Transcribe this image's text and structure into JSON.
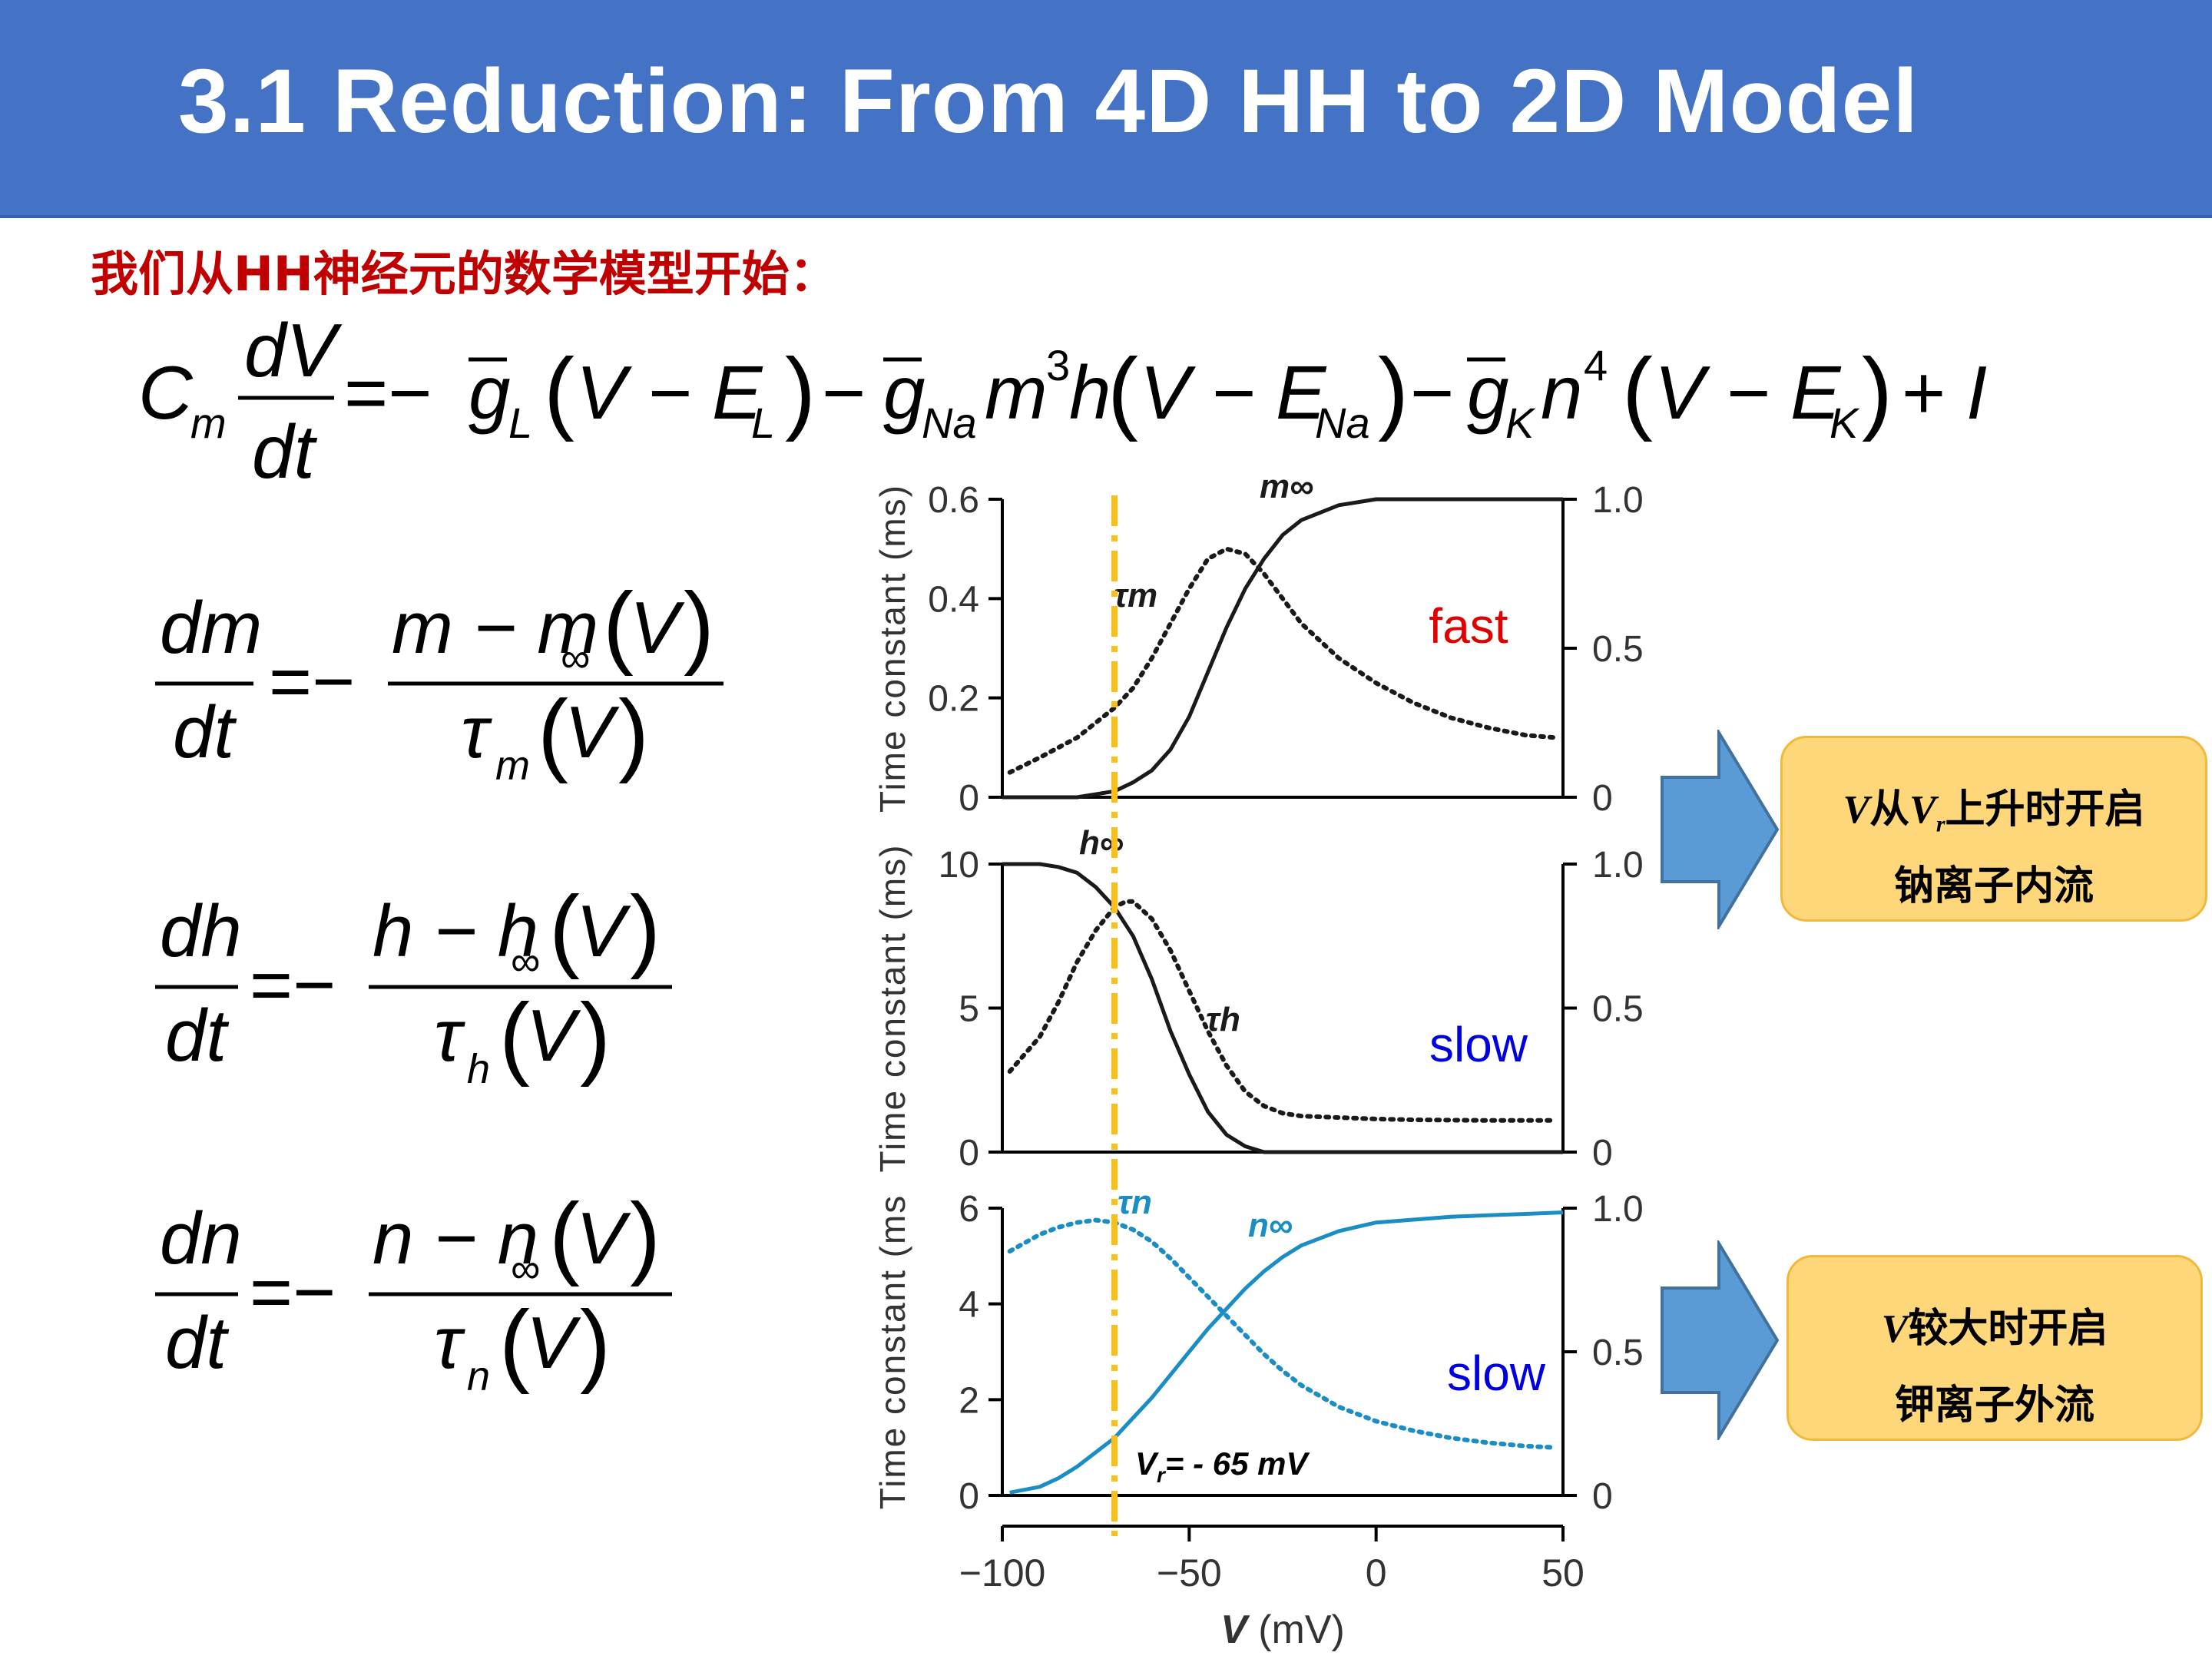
{
  "slide": {
    "title": "3.1 Reduction: From 4D HH to 2D Model",
    "subtitle": "我们从HH神经元的数学模型开始："
  },
  "colors": {
    "title_bg": "#4472c4",
    "subtitle": "#c00000",
    "callout_bg": "#fdd77a",
    "arrow": "#5b9bd5",
    "vr_line": "#fbbf17",
    "n_curve": "#1a8dc4",
    "fast": "#e00000",
    "slow": "#0000dd"
  },
  "callouts": [
    {
      "line1_v": "V",
      "line1_a": "从",
      "line1_vr": "V",
      "line1_sub": "r",
      "line1_b": "上升时开启",
      "line2": "钠离子内流"
    },
    {
      "line1_v": "V",
      "line1_a": "较大时开启",
      "line2": "钾离子外流"
    }
  ],
  "chart_data": [
    {
      "type": "line",
      "ylabel": "Time constant (ms)",
      "yticks_left": [
        "0",
        "0.2",
        "0.4",
        "0.6"
      ],
      "yticks_right": [
        "0",
        "0.5",
        "1.0"
      ],
      "ylim_left": [
        0,
        0.6
      ],
      "ylim_right": [
        0,
        1.0
      ],
      "xlim": [
        -100,
        50
      ],
      "speed_label": "fast",
      "series": [
        {
          "name": "m∞",
          "axis": "right",
          "style": "solid",
          "x": [
            -100,
            -90,
            -80,
            -70,
            -65,
            -60,
            -55,
            -50,
            -45,
            -40,
            -35,
            -30,
            -25,
            -20,
            -10,
            0,
            10,
            20,
            30,
            40,
            50
          ],
          "y": [
            0,
            0,
            0,
            0.02,
            0.05,
            0.09,
            0.16,
            0.27,
            0.42,
            0.57,
            0.7,
            0.8,
            0.88,
            0.93,
            0.98,
            1.0,
            1.0,
            1.0,
            1.0,
            1.0,
            1.0
          ]
        },
        {
          "name": "τm",
          "axis": "left",
          "style": "dotted",
          "x": [
            -98,
            -90,
            -80,
            -70,
            -65,
            -60,
            -55,
            -50,
            -45,
            -40,
            -35,
            -30,
            -25,
            -20,
            -10,
            0,
            10,
            20,
            30,
            40,
            48
          ],
          "y": [
            0.05,
            0.08,
            0.12,
            0.18,
            0.22,
            0.28,
            0.35,
            0.42,
            0.48,
            0.5,
            0.49,
            0.45,
            0.4,
            0.35,
            0.28,
            0.23,
            0.19,
            0.16,
            0.14,
            0.125,
            0.12
          ]
        }
      ]
    },
    {
      "type": "line",
      "ylabel": "Time constant (ms)",
      "yticks_left": [
        "0",
        "5",
        "10"
      ],
      "yticks_right": [
        "0",
        "0.5",
        "1.0"
      ],
      "ylim_left": [
        0,
        10
      ],
      "ylim_right": [
        0,
        1.0
      ],
      "xlim": [
        -100,
        50
      ],
      "speed_label": "slow",
      "series": [
        {
          "name": "h∞",
          "axis": "right",
          "style": "solid",
          "x": [
            -100,
            -90,
            -85,
            -80,
            -75,
            -70,
            -65,
            -60,
            -55,
            -50,
            -45,
            -40,
            -35,
            -30,
            -20,
            -10,
            0,
            50
          ],
          "y": [
            1.0,
            1.0,
            0.99,
            0.97,
            0.92,
            0.85,
            0.75,
            0.6,
            0.42,
            0.27,
            0.14,
            0.06,
            0.02,
            0,
            0,
            0,
            0,
            0
          ]
        },
        {
          "name": "τh",
          "axis": "left",
          "style": "dotted",
          "x": [
            -98,
            -90,
            -85,
            -80,
            -75,
            -70,
            -67,
            -65,
            -60,
            -55,
            -50,
            -45,
            -40,
            -35,
            -30,
            -25,
            -20,
            -10,
            0,
            10,
            30,
            48
          ],
          "y": [
            2.8,
            4.0,
            5.2,
            6.6,
            7.7,
            8.5,
            8.7,
            8.7,
            8.1,
            7.0,
            5.6,
            4.2,
            3.0,
            2.1,
            1.6,
            1.35,
            1.25,
            1.2,
            1.15,
            1.12,
            1.1,
            1.1
          ]
        }
      ]
    },
    {
      "type": "line",
      "ylabel": "Time constant (ms",
      "yticks_left": [
        "0",
        "2",
        "4",
        "6"
      ],
      "yticks_right": [
        "0",
        "0.5",
        "1.0"
      ],
      "ylim_left": [
        0,
        6
      ],
      "ylim_right": [
        0,
        1.0
      ],
      "xlim": [
        -100,
        50
      ],
      "xlabel": "V (mV)",
      "xlabel_v": "V",
      "xlabel_unit": "(mV)",
      "xticks": [
        "−100",
        "−50",
        "0",
        "50"
      ],
      "speed_label": "slow",
      "annotation": "= - 65 mV",
      "annotation_v": "V",
      "annotation_sub": "r",
      "series": [
        {
          "name": "n∞",
          "axis": "right",
          "style": "solid",
          "x": [
            -98,
            -90,
            -85,
            -80,
            -75,
            -70,
            -65,
            -60,
            -55,
            -50,
            -45,
            -40,
            -35,
            -30,
            -25,
            -20,
            -10,
            0,
            10,
            20,
            30,
            40,
            50
          ],
          "y": [
            0.01,
            0.03,
            0.06,
            0.1,
            0.15,
            0.2,
            0.27,
            0.34,
            0.42,
            0.5,
            0.58,
            0.65,
            0.72,
            0.78,
            0.83,
            0.87,
            0.92,
            0.95,
            0.96,
            0.97,
            0.975,
            0.98,
            0.985
          ]
        },
        {
          "name": "τn",
          "axis": "left",
          "style": "dotted",
          "x": [
            -98,
            -90,
            -85,
            -80,
            -75,
            -70,
            -65,
            -60,
            -55,
            -50,
            -45,
            -40,
            -35,
            -30,
            -25,
            -20,
            -10,
            0,
            10,
            20,
            30,
            40,
            48
          ],
          "y": [
            5.1,
            5.45,
            5.6,
            5.7,
            5.75,
            5.7,
            5.55,
            5.3,
            4.95,
            4.55,
            4.15,
            3.75,
            3.35,
            2.95,
            2.6,
            2.3,
            1.85,
            1.55,
            1.35,
            1.2,
            1.1,
            1.03,
            1.0
          ]
        }
      ]
    }
  ]
}
